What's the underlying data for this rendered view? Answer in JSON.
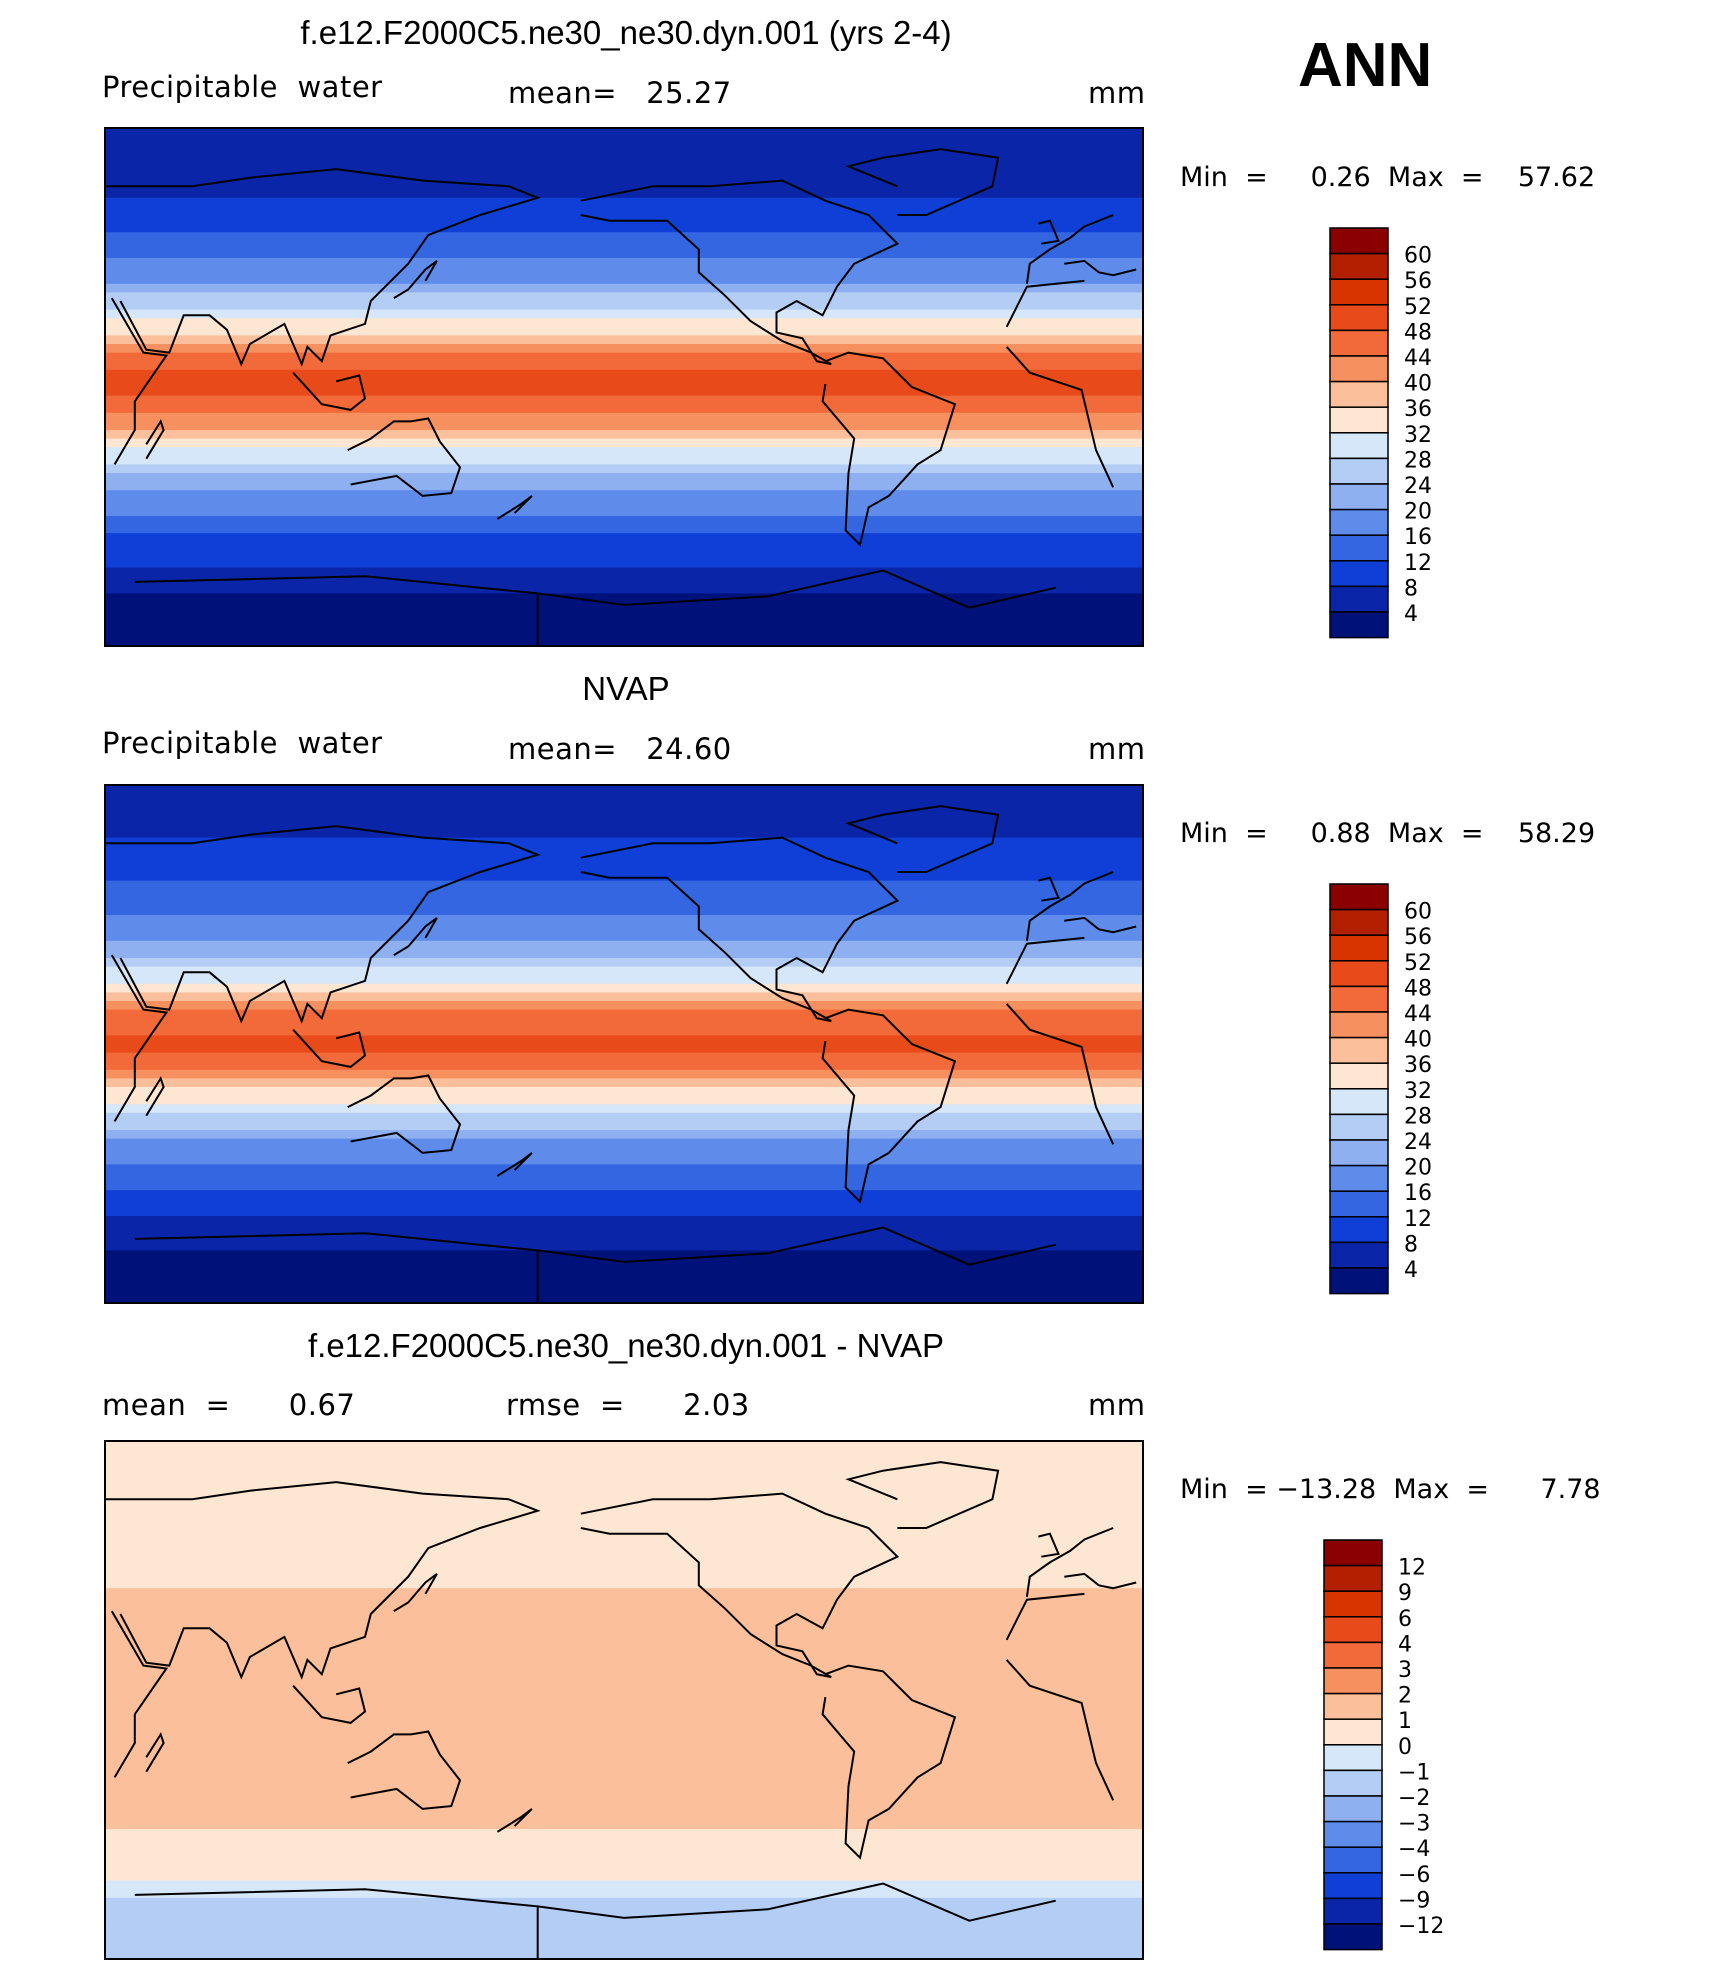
{
  "season": "ANN",
  "panels": [
    {
      "title": "f.e12.F2000C5.ne30_ne30.dyn.001 (yrs 2-4)",
      "left_label": "Precipitable  water",
      "mid_label": "mean=   25.27",
      "units": "mm",
      "minmax": "Min  =     0.26  Max  =    57.62"
    },
    {
      "title": "NVAP",
      "left_label": "Precipitable  water",
      "mid_label": "mean=   24.60",
      "units": "mm",
      "minmax": "Min  =     0.88  Max  =    58.29"
    },
    {
      "title": "f.e12.F2000C5.ne30_ne30.dyn.001 - NVAP",
      "left_label": "mean  =      0.67",
      "mid_label": "rmse  =      2.03",
      "units": "mm",
      "minmax": "Min  = −13.28  Max  =      7.78"
    }
  ],
  "chart_data": [
    {
      "type": "heatmap",
      "title": "f.e12.F2000C5.ne30_ne30.dyn.001 (yrs 2-4)",
      "variable": "Precipitable  water",
      "units": "mm",
      "mean": 25.27,
      "min": 0.26,
      "max": 57.62,
      "colorbar_labels": [
        "60",
        "56",
        "52",
        "48",
        "44",
        "40",
        "36",
        "32",
        "28",
        "24",
        "20",
        "16",
        "12",
        "8",
        "4"
      ],
      "colorbar_colors": [
        "#8b0000",
        "#b22000",
        "#d83400",
        "#e84a1a",
        "#f26a3a",
        "#f7905f",
        "#fbbf9b",
        "#fde6d2",
        "#d5e7f9",
        "#b3cdf5",
        "#8eb0f0",
        "#5f8ceb",
        "#3366e0",
        "#0f3fd6",
        "#0a25a8",
        "#00127a"
      ],
      "lat_profile": [
        {
          "lat": 90,
          "v": 4
        },
        {
          "lat": 65,
          "v": 8
        },
        {
          "lat": 50,
          "v": 14
        },
        {
          "lat": 35,
          "v": 21
        },
        {
          "lat": 22,
          "v": 33
        },
        {
          "lat": 10,
          "v": 46
        },
        {
          "lat": 0,
          "v": 50
        },
        {
          "lat": -10,
          "v": 44
        },
        {
          "lat": -22,
          "v": 31
        },
        {
          "lat": -35,
          "v": 20
        },
        {
          "lat": -50,
          "v": 13
        },
        {
          "lat": -62,
          "v": 8
        },
        {
          "lat": -75,
          "v": 3
        },
        {
          "lat": -90,
          "v": 1
        }
      ]
    },
    {
      "type": "heatmap",
      "title": "NVAP",
      "variable": "Precipitable  water",
      "units": "mm",
      "mean": 24.6,
      "min": 0.88,
      "max": 58.29,
      "colorbar_labels": [
        "60",
        "56",
        "52",
        "48",
        "44",
        "40",
        "36",
        "32",
        "28",
        "24",
        "20",
        "16",
        "12",
        "8",
        "4"
      ],
      "colorbar_colors": [
        "#8b0000",
        "#b22000",
        "#d83400",
        "#e84a1a",
        "#f26a3a",
        "#f7905f",
        "#fbbf9b",
        "#fde6d2",
        "#d5e7f9",
        "#b3cdf5",
        "#8eb0f0",
        "#5f8ceb",
        "#3366e0",
        "#0f3fd6",
        "#0a25a8",
        "#00127a"
      ],
      "lat_profile": [
        {
          "lat": 90,
          "v": 5
        },
        {
          "lat": 65,
          "v": 9
        },
        {
          "lat": 50,
          "v": 14
        },
        {
          "lat": 35,
          "v": 21
        },
        {
          "lat": 22,
          "v": 32
        },
        {
          "lat": 10,
          "v": 45
        },
        {
          "lat": 0,
          "v": 49
        },
        {
          "lat": -10,
          "v": 43
        },
        {
          "lat": -22,
          "v": 30
        },
        {
          "lat": -35,
          "v": 19
        },
        {
          "lat": -50,
          "v": 12
        },
        {
          "lat": -62,
          "v": 7
        },
        {
          "lat": -75,
          "v": 3
        },
        {
          "lat": -90,
          "v": 1
        }
      ]
    },
    {
      "type": "heatmap",
      "title": "f.e12.F2000C5.ne30_ne30.dyn.001 - NVAP",
      "units": "mm",
      "mean": 0.67,
      "rmse": 2.03,
      "min": -13.28,
      "max": 7.78,
      "colorbar_labels": [
        "12",
        "9",
        "6",
        "4",
        "3",
        "2",
        "1",
        "0",
        "−1",
        "−2",
        "−3",
        "−4",
        "−6",
        "−9",
        "−12"
      ],
      "colorbar_colors": [
        "#8b0000",
        "#b22000",
        "#d83400",
        "#e84a1a",
        "#f26a3a",
        "#f7905f",
        "#fbbf9b",
        "#fde6d2",
        "#d5e7f9",
        "#b3cdf5",
        "#8eb0f0",
        "#5f8ceb",
        "#3366e0",
        "#0f3fd6",
        "#0a25a8",
        "#00127a"
      ],
      "lat_profile": [
        {
          "lat": 90,
          "v": 0.5
        },
        {
          "lat": 60,
          "v": 0.5
        },
        {
          "lat": 40,
          "v": 1
        },
        {
          "lat": 20,
          "v": 2
        },
        {
          "lat": 0,
          "v": 1
        },
        {
          "lat": -20,
          "v": 1.5
        },
        {
          "lat": -45,
          "v": 1
        },
        {
          "lat": -60,
          "v": 0.5
        },
        {
          "lat": -70,
          "v": -1.5
        },
        {
          "lat": -90,
          "v": -1.5
        }
      ]
    }
  ]
}
